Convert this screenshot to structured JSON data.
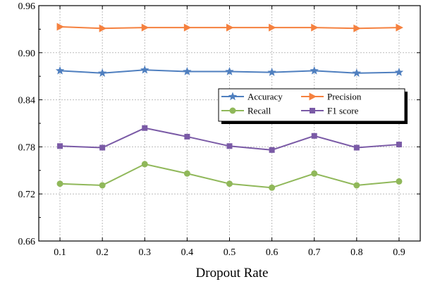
{
  "chart_data": {
    "type": "line",
    "title": "",
    "xlabel": "Dropout Rate",
    "ylabel": "",
    "x": [
      0.1,
      0.2,
      0.3,
      0.4,
      0.5,
      0.6,
      0.7,
      0.8,
      0.9
    ],
    "x_tick_labels": [
      "0.1",
      "0.2",
      "0.3",
      "0.4",
      "0.5",
      "0.6",
      "0.7",
      "0.8",
      "0.9"
    ],
    "xlim": [
      0.05,
      0.95
    ],
    "ylim": [
      0.66,
      0.96
    ],
    "y_ticks": [
      0.66,
      0.72,
      0.78,
      0.84,
      0.9,
      0.96
    ],
    "y_tick_labels": [
      "0.66",
      "0.72",
      "0.78",
      "0.84",
      "0.90",
      "0.96"
    ],
    "grid": true,
    "legend_position": "center-right",
    "series": [
      {
        "name": "Accuracy",
        "color": "#4f7fbf",
        "marker": "star",
        "values": [
          0.877,
          0.874,
          0.878,
          0.876,
          0.876,
          0.875,
          0.877,
          0.874,
          0.875
        ]
      },
      {
        "name": "Precision",
        "color": "#f5813f",
        "marker": "triangle-right",
        "values": [
          0.933,
          0.931,
          0.932,
          0.932,
          0.932,
          0.932,
          0.932,
          0.931,
          0.932
        ]
      },
      {
        "name": "Recall",
        "color": "#90b85a",
        "marker": "circle",
        "values": [
          0.733,
          0.731,
          0.758,
          0.746,
          0.733,
          0.728,
          0.746,
          0.731,
          0.736
        ]
      },
      {
        "name": "F1 score",
        "color": "#7a5aa6",
        "marker": "square",
        "values": [
          0.781,
          0.779,
          0.804,
          0.793,
          0.781,
          0.776,
          0.794,
          0.779,
          0.783
        ]
      }
    ]
  }
}
